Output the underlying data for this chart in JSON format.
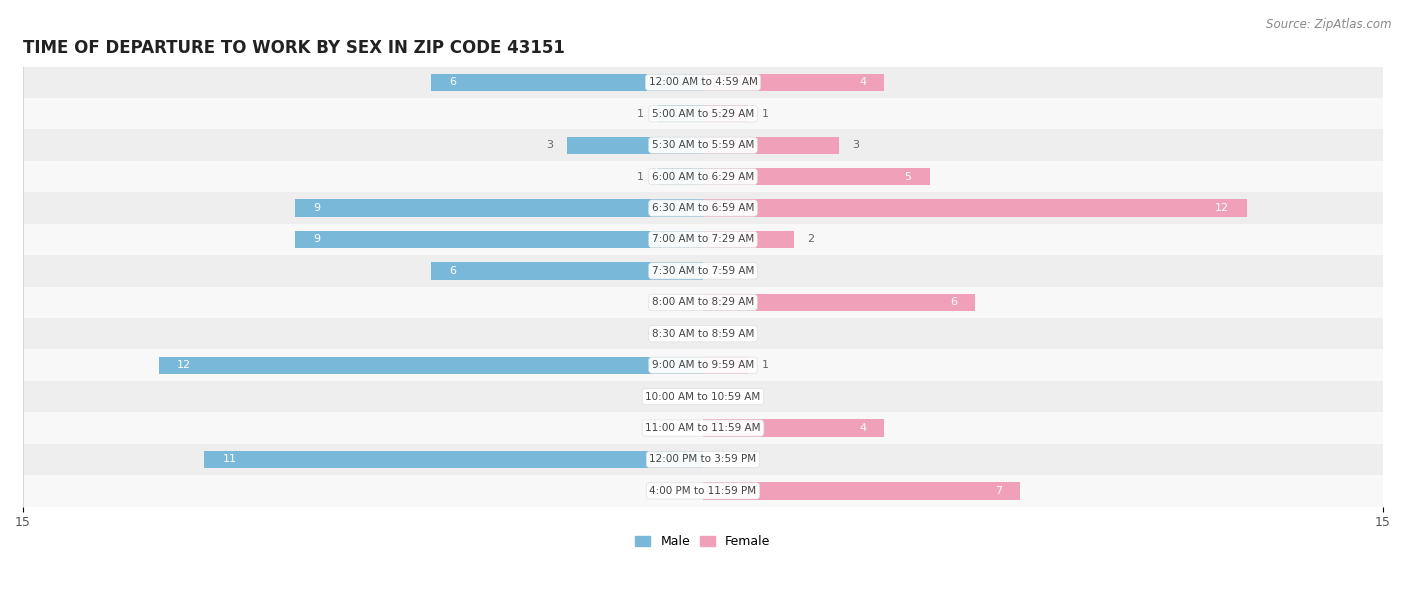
{
  "title": "TIME OF DEPARTURE TO WORK BY SEX IN ZIP CODE 43151",
  "source": "Source: ZipAtlas.com",
  "categories": [
    "12:00 AM to 4:59 AM",
    "5:00 AM to 5:29 AM",
    "5:30 AM to 5:59 AM",
    "6:00 AM to 6:29 AM",
    "6:30 AM to 6:59 AM",
    "7:00 AM to 7:29 AM",
    "7:30 AM to 7:59 AM",
    "8:00 AM to 8:29 AM",
    "8:30 AM to 8:59 AM",
    "9:00 AM to 9:59 AM",
    "10:00 AM to 10:59 AM",
    "11:00 AM to 11:59 AM",
    "12:00 PM to 3:59 PM",
    "4:00 PM to 11:59 PM"
  ],
  "male": [
    6,
    1,
    3,
    1,
    9,
    9,
    6,
    0,
    0,
    12,
    0,
    0,
    11,
    0
  ],
  "female": [
    4,
    1,
    3,
    5,
    12,
    2,
    0,
    6,
    0,
    1,
    0,
    4,
    0,
    7
  ],
  "male_color": "#7ab8d9",
  "female_color": "#f0a0b8",
  "male_label_color_dark": "#666666",
  "male_label_color_light": "#ffffff",
  "female_label_color_dark": "#666666",
  "female_label_color_light": "#ffffff",
  "row_bg_even": "#eeeeee",
  "row_bg_odd": "#f8f8f8",
  "axis_max": 15,
  "title_fontsize": 12,
  "source_fontsize": 8.5,
  "label_fontsize": 8,
  "category_fontsize": 7.5,
  "tick_fontsize": 9,
  "legend_fontsize": 9
}
